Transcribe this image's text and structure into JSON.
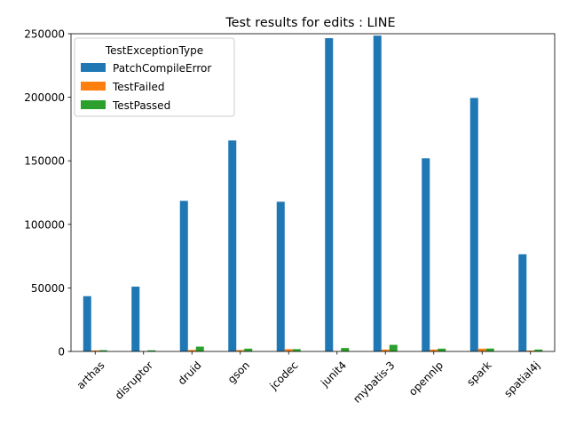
{
  "chart_data": {
    "type": "bar",
    "title": "Test results for edits : LINE",
    "xlabel": "",
    "ylabel": "",
    "categories": [
      "arthas",
      "disruptor",
      "druid",
      "gson",
      "jcodec",
      "junit4",
      "mybatis-3",
      "opennlp",
      "spark",
      "spatial4j"
    ],
    "ylim": [
      0,
      250000
    ],
    "yticks": [
      0,
      50000,
      100000,
      150000,
      200000,
      250000
    ],
    "ytick_labels": [
      "0",
      "50000",
      "100000",
      "150000",
      "200000",
      "250000"
    ],
    "grid": false,
    "legend_title": "TestExceptionType",
    "legend_position": "top-left",
    "series": [
      {
        "name": "PatchCompileError",
        "color": "#1f77b4",
        "values": [
          43500,
          51000,
          118500,
          166000,
          117800,
          246500,
          248500,
          152000,
          199500,
          76500
        ]
      },
      {
        "name": "TestFailed",
        "color": "#ff7f0e",
        "values": [
          800,
          300,
          1200,
          1100,
          1800,
          300,
          1500,
          1500,
          2200,
          700
        ]
      },
      {
        "name": "TestPassed",
        "color": "#2ca02c",
        "values": [
          1000,
          900,
          3800,
          2200,
          1800,
          2700,
          5200,
          2200,
          2300,
          1500
        ]
      }
    ]
  }
}
